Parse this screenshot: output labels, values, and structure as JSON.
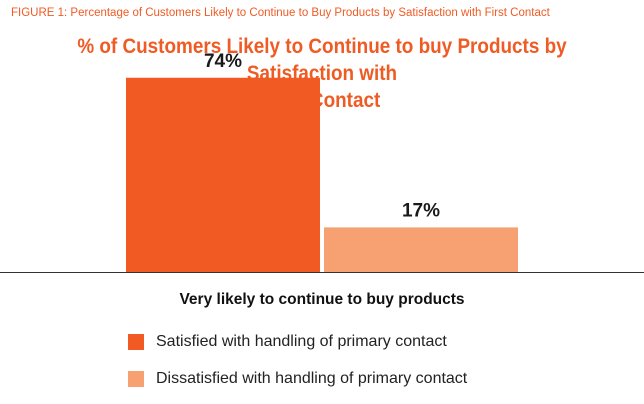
{
  "figure_caption": "FIGURE 1: Percentage of Customers Likely to Continue to Buy Products by Satisfaction with First Contact",
  "colors": {
    "accent": "#ef5b24",
    "series1": "#f15a22",
    "series2": "#f7a072",
    "axis": "#333333",
    "text": "#1a1a1a"
  },
  "chart_data": {
    "type": "bar",
    "title": "% of Customers Likely to Continue to buy Products by Satisfaction with First Contact",
    "title_lines": [
      "% of Customers Likely to Continue to buy Products by Satisfaction with",
      "First Contact"
    ],
    "categories": [
      "Very likely to continue to buy products"
    ],
    "xlabel": "Very likely to continue to buy products",
    "ylabel": "",
    "ylim": [
      0,
      80
    ],
    "grid": false,
    "legend_position": "bottom",
    "series": [
      {
        "name": "Satisfied with handling of primary contact",
        "values": [
          74
        ],
        "label": "74%"
      },
      {
        "name": "Dissatisfied with handling of primary contact",
        "values": [
          17
        ],
        "label": "17%"
      }
    ]
  }
}
